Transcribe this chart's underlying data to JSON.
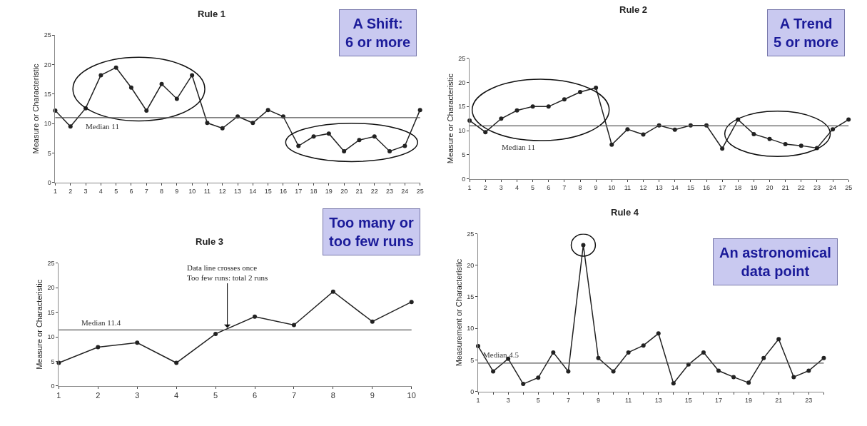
{
  "chart_data": [
    {
      "type": "line",
      "title": "Rule 1",
      "ylabel": "Measure or Characteristic",
      "marker": "circle",
      "x": [
        1,
        2,
        3,
        4,
        5,
        6,
        7,
        8,
        9,
        10,
        11,
        12,
        13,
        14,
        15,
        16,
        17,
        18,
        19,
        20,
        21,
        22,
        23,
        24,
        25
      ],
      "series": [
        {
          "color": "#222222",
          "values": [
            12.2,
            9.5,
            12.6,
            18.2,
            19.5,
            16.1,
            12.2,
            16.7,
            14.2,
            18.2,
            10.1,
            9.2,
            11.2,
            10.1,
            12.3,
            11.2,
            6.2,
            7.8,
            8.3,
            5.3,
            7.2,
            7.8,
            5.3,
            6.2,
            12.3
          ]
        }
      ],
      "xlim": [
        1,
        25
      ],
      "xticks": [
        1,
        2,
        3,
        4,
        5,
        6,
        7,
        8,
        9,
        10,
        11,
        12,
        13,
        14,
        15,
        16,
        17,
        18,
        19,
        20,
        21,
        22,
        23,
        24,
        25
      ],
      "ylim": [
        0,
        25
      ],
      "yticks": [
        0,
        5,
        10,
        15,
        20,
        25
      ],
      "ref_lines": [
        {
          "axis": "y",
          "value": 11,
          "label": "Median 11",
          "color": "#555555"
        }
      ],
      "annotations": [
        "A Shift:\n6 or more"
      ]
    },
    {
      "type": "line",
      "title": "Rule 2",
      "ylabel": "Measure or Characteristic",
      "marker": "circle",
      "x": [
        1,
        2,
        3,
        4,
        5,
        6,
        7,
        8,
        9,
        10,
        11,
        12,
        13,
        14,
        15,
        16,
        17,
        18,
        19,
        20,
        21,
        22,
        23,
        24,
        25
      ],
      "series": [
        {
          "color": "#222222",
          "values": [
            12.1,
            9.7,
            12.5,
            14.2,
            15,
            15,
            16.5,
            18,
            18.9,
            7.1,
            10.3,
            9.2,
            11.1,
            10.2,
            11.1,
            11.1,
            6.3,
            12.3,
            9.3,
            8.3,
            7.2,
            6.9,
            6.4,
            10.3,
            12.3
          ]
        }
      ],
      "xlim": [
        1,
        25
      ],
      "xticks": [
        1,
        2,
        3,
        4,
        5,
        6,
        7,
        8,
        9,
        10,
        11,
        12,
        13,
        14,
        15,
        16,
        17,
        18,
        19,
        20,
        21,
        22,
        23,
        24,
        25
      ],
      "ylim": [
        0,
        25
      ],
      "yticks": [
        0,
        5,
        10,
        15,
        20,
        25
      ],
      "ref_lines": [
        {
          "axis": "y",
          "value": 11,
          "label": "Median 11",
          "color": "#555555"
        }
      ],
      "annotations": [
        "A Trend\n5 or more"
      ]
    },
    {
      "type": "line",
      "title": "Rule 3",
      "ylabel": "Measure or Characteristic",
      "marker": "circle",
      "x": [
        1,
        2,
        3,
        4,
        5,
        6,
        7,
        8,
        9,
        10
      ],
      "series": [
        {
          "color": "#222222",
          "values": [
            4.7,
            7.9,
            8.8,
            4.7,
            10.6,
            14.1,
            12.4,
            19.2,
            13.1,
            17.1
          ]
        }
      ],
      "xlim": [
        1,
        10
      ],
      "xticks": [
        1,
        2,
        3,
        4,
        5,
        6,
        7,
        8,
        9,
        10
      ],
      "ylim": [
        0,
        25
      ],
      "yticks": [
        0,
        5,
        10,
        15,
        20,
        25
      ],
      "ref_lines": [
        {
          "axis": "y",
          "value": 11.4,
          "label": "Median 11.4",
          "color": "#555555"
        }
      ],
      "annotations": [
        "Too many or\ntoo few runs",
        {
          "text": "Data line crosses once\nToo few runs: total 2 runs",
          "x": 5.3,
          "y": 11.4
        }
      ]
    },
    {
      "type": "line",
      "title": "Rule 4",
      "ylabel": "Measurement or Characteristic",
      "marker": "circle",
      "x": [
        1,
        2,
        3,
        4,
        5,
        6,
        7,
        8,
        9,
        10,
        11,
        12,
        13,
        14,
        15,
        16,
        17,
        18,
        19,
        20,
        21,
        22,
        23,
        24
      ],
      "series": [
        {
          "color": "#222222",
          "values": [
            7.2,
            3.2,
            5.2,
            1.2,
            2.2,
            6.2,
            3.2,
            23.2,
            5.3,
            3.2,
            6.2,
            7.3,
            9.2,
            1.3,
            4.3,
            6.2,
            3.3,
            2.3,
            1.4,
            5.3,
            8.3,
            2.3,
            3.3,
            5.3
          ]
        }
      ],
      "xlim": [
        1,
        24
      ],
      "xticks": [
        1,
        {
          "value": 2,
          "label": null
        },
        3,
        {
          "value": 4,
          "label": null
        },
        5,
        {
          "value": 6,
          "label": null
        },
        7,
        {
          "value": 8,
          "label": null
        },
        9,
        {
          "value": 10,
          "label": null
        },
        11,
        {
          "value": 12,
          "label": null
        },
        13,
        {
          "value": 14,
          "label": null
        },
        15,
        {
          "value": 16,
          "label": null
        },
        17,
        {
          "value": 18,
          "label": null
        },
        19,
        {
          "value": 20,
          "label": null
        },
        21,
        {
          "value": 22,
          "label": null
        },
        23,
        {
          "value": 24,
          "label": null
        }
      ],
      "ylim": [
        0,
        25
      ],
      "yticks": [
        0,
        5,
        10,
        15,
        20,
        25
      ],
      "ref_lines": [
        {
          "axis": "y",
          "value": 4.5,
          "label": "Median 4.5",
          "color": "#555555"
        }
      ],
      "annotations": [
        "An astronomical\ndata point"
      ]
    }
  ]
}
